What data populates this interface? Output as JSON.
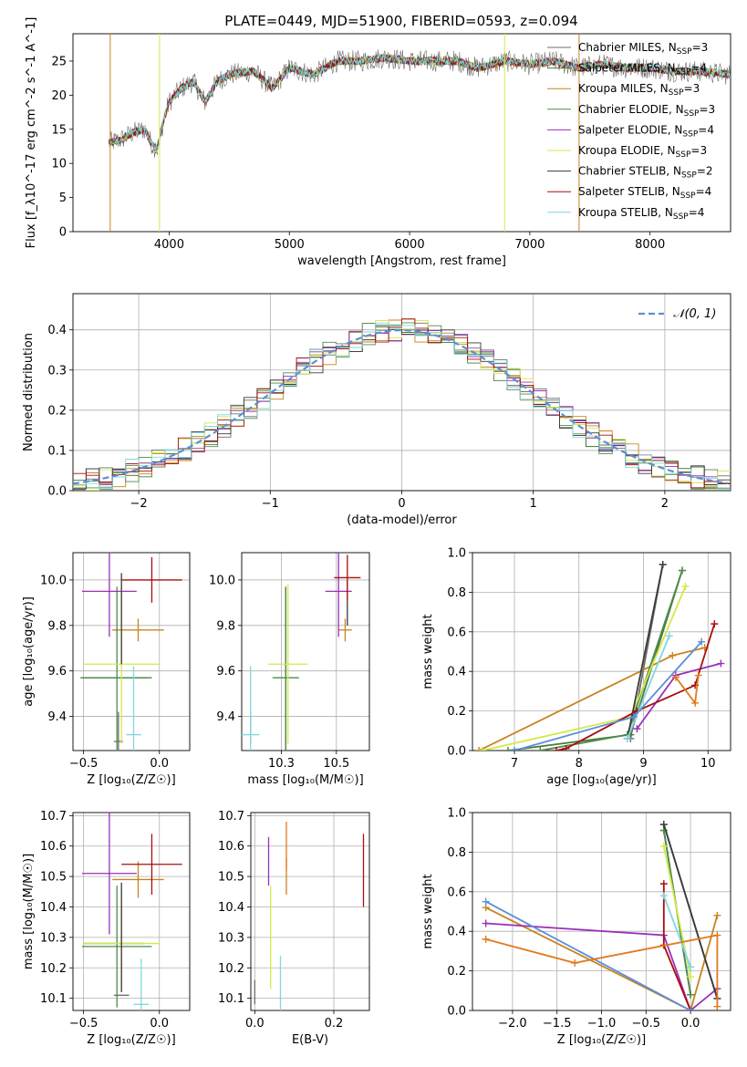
{
  "figure": {
    "title": "PLATE=0449, MJD=51900, FIBERID=0593, z=0.094"
  },
  "models": [
    {
      "name": "Chabrier MILES, N$_{SSP}$=3",
      "label": "Chabrier MILES, N",
      "sub": "SSP",
      "tail": "=3",
      "color": "#6e6e6e"
    },
    {
      "name": "Salpeter MILES, N$_{SSP}$=4",
      "label": "Salpeter MILES, N",
      "sub": "SSP",
      "tail": "=4",
      "color": "#4a7a3a"
    },
    {
      "name": "Kroupa MILES, N$_{SSP}$=3",
      "label": "Kroupa MILES, N",
      "sub": "SSP",
      "tail": "=3",
      "color": "#c8821e"
    },
    {
      "name": "Chabrier ELODIE, N$_{SSP}$=3",
      "label": "Chabrier ELODIE, N",
      "sub": "SSP",
      "tail": "=3",
      "color": "#4e8a4e"
    },
    {
      "name": "Salpeter ELODIE, N$_{SSP}$=4",
      "label": "Salpeter ELODIE, N",
      "sub": "SSP",
      "tail": "=4",
      "color": "#9b30b8"
    },
    {
      "name": "Kroupa ELODIE, N$_{SSP}$=3",
      "label": "Kroupa ELODIE, N",
      "sub": "SSP",
      "tail": "=3",
      "color": "#d4e84a"
    },
    {
      "name": "Chabrier STELIB, N$_{SSP}$=2",
      "label": "Chabrier STELIB, N",
      "sub": "SSP",
      "tail": "=2",
      "color": "#3a3a3a"
    },
    {
      "name": "Salpeter STELIB, N$_{SSP}$=4",
      "label": "Salpeter STELIB, N",
      "sub": "SSP",
      "tail": "=4",
      "color": "#a80e0e"
    },
    {
      "name": "Kroupa STELIB, N$_{SSP}$=4",
      "label": "Kroupa STELIB, N",
      "sub": "SSP",
      "tail": "=4",
      "color": "#7fd8e0"
    }
  ],
  "chart_data": [
    {
      "type": "line",
      "panel": "spectrum",
      "xlabel": "wavelength [Angstrom, rest frame]",
      "ylabel": "Flux [f_λ10^-17 erg cm^-2 s^-1 A^-1]",
      "xlim": [
        3200,
        8670
      ],
      "ylim": [
        0,
        29
      ],
      "xticks": [
        4000,
        5000,
        6000,
        7000,
        8000
      ],
      "yticks": [
        0,
        5,
        10,
        15,
        20,
        25
      ],
      "grid": false,
      "legend": "top-right",
      "continuum": [
        [
          3500,
          13
        ],
        [
          3600,
          13.5
        ],
        [
          3700,
          14.5
        ],
        [
          3800,
          15
        ],
        [
          3850,
          13
        ],
        [
          3900,
          12
        ],
        [
          3950,
          16
        ],
        [
          4000,
          19
        ],
        [
          4100,
          21
        ],
        [
          4200,
          22
        ],
        [
          4300,
          19
        ],
        [
          4400,
          22
        ],
        [
          4500,
          23
        ],
        [
          4700,
          23.5
        ],
        [
          4860,
          21
        ],
        [
          5000,
          24
        ],
        [
          5200,
          23
        ],
        [
          5400,
          25
        ],
        [
          5600,
          25
        ],
        [
          5800,
          25.5
        ],
        [
          6000,
          25
        ],
        [
          6200,
          25
        ],
        [
          6400,
          25
        ],
        [
          6563,
          24
        ],
        [
          6800,
          25
        ],
        [
          7000,
          24.5
        ],
        [
          7200,
          25
        ],
        [
          7400,
          24
        ],
        [
          7600,
          24.5
        ],
        [
          7800,
          24
        ],
        [
          8000,
          24
        ],
        [
          8200,
          23.5
        ],
        [
          8400,
          23.5
        ],
        [
          8670,
          23
        ]
      ],
      "spikes": [
        {
          "x": 3510,
          "model": 2
        },
        {
          "x": 3920,
          "model": 5
        },
        {
          "x": 6790,
          "model": 5
        },
        {
          "x": 7410,
          "model": 2
        }
      ]
    },
    {
      "type": "line",
      "panel": "residuals",
      "xlabel": "(data-model)/error",
      "ylabel": "Normed distribution",
      "xlim": [
        -2.5,
        2.5
      ],
      "ylim": [
        0,
        0.49
      ],
      "xticks": [
        -2,
        -1,
        0,
        1,
        2
      ],
      "yticks": [
        0.0,
        0.1,
        0.2,
        0.3,
        0.4
      ],
      "grid": true,
      "legend": "top-right",
      "legend_entry": "𝒩(0, 1)",
      "gauss_sigma": 1.0
    },
    {
      "type": "scatter",
      "panel": "age-vs-Z",
      "xlabel": "Z [log₁₀(Z/Z☉)]",
      "ylabel": "age  [log₁₀(age/yr)]",
      "xlim": [
        -0.57,
        0.2
      ],
      "ylim": [
        9.25,
        10.12
      ],
      "xticks": [
        -0.5,
        0.0
      ],
      "yticks": [
        9.4,
        9.6,
        9.8,
        10.0
      ],
      "points": [
        {
          "model": 0,
          "x": -0.27,
          "xerr": 0.03,
          "y": 9.29,
          "yerr": 0.13
        },
        {
          "model": 1,
          "x": -0.3,
          "xerr": 0.22,
          "y": 9.57,
          "yerr": 0.0
        },
        {
          "model": 2,
          "x": -0.14,
          "xerr": 0.17,
          "y": 9.78,
          "yerr": 0.05
        },
        {
          "model": 3,
          "x": -0.28,
          "xerr": 0.23,
          "y": 9.57,
          "yerr": 0.4
        },
        {
          "model": 4,
          "x": -0.33,
          "xerr": 0.18,
          "y": 9.95,
          "yerr": 0.2
        },
        {
          "model": 5,
          "x": -0.25,
          "xerr": 0.25,
          "y": 9.63,
          "yerr": 0.35
        },
        {
          "model": 6,
          "x": -0.25,
          "xerr": 0.0,
          "y": 9.83,
          "yerr": 0.2
        },
        {
          "model": 7,
          "x": -0.05,
          "xerr": 0.2,
          "y": 10.0,
          "yerr": 0.1
        },
        {
          "model": 8,
          "x": -0.17,
          "xerr": 0.05,
          "y": 9.32,
          "yerr": 0.3
        }
      ]
    },
    {
      "type": "scatter",
      "panel": "age-vs-mass",
      "xlabel": "mass [log₁₀(M/M☉)]",
      "ylabel": "",
      "xlim": [
        10.07,
        10.65
      ],
      "ylim": [
        9.25,
        10.12
      ],
      "xticks": [
        10.25,
        10.5
      ],
      "yticks": [
        9.4,
        9.6,
        9.8,
        10.0
      ],
      "points": [
        {
          "model": 0,
          "x": 10.11,
          "xerr": 0.0,
          "y": 9.35,
          "yerr": 0.07
        },
        {
          "model": 1,
          "x": 10.27,
          "xerr": 0.0,
          "y": 9.57,
          "yerr": 0.4
        },
        {
          "model": 2,
          "x": 10.54,
          "xerr": 0.03,
          "y": 9.78,
          "yerr": 0.05
        },
        {
          "model": 3,
          "x": 10.27,
          "xerr": 0.06,
          "y": 9.57,
          "yerr": 0.4
        },
        {
          "model": 4,
          "x": 10.51,
          "xerr": 0.06,
          "y": 9.95,
          "yerr": 0.2
        },
        {
          "model": 5,
          "x": 10.28,
          "xerr": 0.09,
          "y": 9.63,
          "yerr": 0.35
        },
        {
          "model": 6,
          "x": 10.55,
          "xerr": 0.0,
          "y": 9.9,
          "yerr": 0.1
        },
        {
          "model": 7,
          "x": 10.55,
          "xerr": 0.06,
          "y": 10.01,
          "yerr": 0.1
        },
        {
          "model": 8,
          "x": 10.11,
          "xerr": 0.04,
          "y": 9.32,
          "yerr": 0.3
        }
      ]
    },
    {
      "type": "line",
      "panel": "mass-weight-vs-age",
      "xlabel": "age  [log₁₀(age/yr)]",
      "ylabel": "mass weight",
      "xlim": [
        6.35,
        10.35
      ],
      "ylim": [
        0,
        1.0
      ],
      "xticks": [
        7,
        8,
        9,
        10
      ],
      "yticks": [
        0.0,
        0.2,
        0.4,
        0.6,
        0.8,
        1.0
      ],
      "series": [
        {
          "model": 0,
          "x": [
            8.8,
            9.3
          ],
          "y": [
            0.06,
            0.94
          ]
        },
        {
          "model": 1,
          "x": [
            6.9,
            8.8,
            9.6
          ],
          "y": [
            0.0,
            0.08,
            0.91
          ]
        },
        {
          "model": 2,
          "x": [
            6.45,
            9.45,
            9.95
          ],
          "y": [
            0.0,
            0.48,
            0.52
          ]
        },
        {
          "model": 3,
          "x": [
            7.4,
            8.75,
            9.6
          ],
          "y": [
            0.0,
            0.08,
            0.91
          ]
        },
        {
          "model": 4,
          "x": [
            8.9,
            9.5,
            10.2
          ],
          "y": [
            0.11,
            0.38,
            0.44
          ]
        },
        {
          "model": 5,
          "x": [
            6.5,
            8.8,
            9.65
          ],
          "y": [
            0.0,
            0.17,
            0.83
          ]
        },
        {
          "model": 6,
          "x": [
            8.75,
            9.3
          ],
          "y": [
            0.06,
            0.94
          ]
        },
        {
          "model": 7,
          "x": [
            7.65,
            7.8,
            8.9,
            9.8,
            10.1
          ],
          "y": [
            0.0,
            0.01,
            0.2,
            0.33,
            0.64
          ]
        },
        {
          "model": 8,
          "x": [
            8.75,
            9.4
          ],
          "y": [
            0.06,
            0.58
          ]
        },
        {
          "model": 9,
          "x": [
            7.0,
            8.85,
            9.9
          ],
          "y": [
            0.0,
            0.17,
            0.55
          ]
        },
        {
          "model": 10,
          "x": [
            9.5,
            9.8,
            9.85
          ],
          "y": [
            0.37,
            0.24,
            0.38
          ]
        }
      ]
    },
    {
      "type": "scatter",
      "panel": "mass-vs-Z",
      "xlabel": "Z [log₁₀(Z/Z☉)]",
      "ylabel": "mass [log₁₀(M/M☉)]",
      "xlim": [
        -0.57,
        0.2
      ],
      "ylim": [
        10.06,
        10.71
      ],
      "xticks": [
        -0.5,
        0.0
      ],
      "yticks": [
        10.1,
        10.2,
        10.3,
        10.4,
        10.5,
        10.6,
        10.7
      ],
      "points": [
        {
          "model": 0,
          "x": -0.25,
          "xerr": 0.05,
          "y": 10.11,
          "yerr": 0.0
        },
        {
          "model": 1,
          "x": -0.3,
          "xerr": 0.2,
          "y": 10.28,
          "yerr": 0.0
        },
        {
          "model": 2,
          "x": -0.14,
          "xerr": 0.17,
          "y": 10.49,
          "yerr": 0.06
        },
        {
          "model": 3,
          "x": -0.28,
          "xerr": 0.23,
          "y": 10.27,
          "yerr": 0.2
        },
        {
          "model": 4,
          "x": -0.33,
          "xerr": 0.18,
          "y": 10.51,
          "yerr": 0.2
        },
        {
          "model": 5,
          "x": -0.25,
          "xerr": 0.25,
          "y": 10.28,
          "yerr": 0.15
        },
        {
          "model": 6,
          "x": -0.25,
          "xerr": 0.0,
          "y": 10.3,
          "yerr": 0.18
        },
        {
          "model": 7,
          "x": -0.05,
          "xerr": 0.2,
          "y": 10.54,
          "yerr": 0.1
        },
        {
          "model": 8,
          "x": -0.12,
          "xerr": 0.05,
          "y": 10.08,
          "yerr": 0.15
        }
      ]
    },
    {
      "type": "scatter",
      "panel": "mass-vs-EBV",
      "xlabel": "E(B-V)",
      "ylabel": "",
      "xlim": [
        -0.01,
        0.29
      ],
      "ylim": [
        10.06,
        10.71
      ],
      "xticks": [
        0.0,
        0.2
      ],
      "yticks": [
        10.1,
        10.2,
        10.3,
        10.4,
        10.5,
        10.6,
        10.7
      ],
      "points": [
        {
          "model": 0,
          "x": 0.0,
          "y": 10.12,
          "yerr": 0.04
        },
        {
          "model": 4,
          "x": 0.035,
          "y": 10.55,
          "yerr": 0.08
        },
        {
          "model": 5,
          "x": 0.04,
          "y": 10.3,
          "yerr": 0.17
        },
        {
          "model": 2,
          "x": 0.08,
          "y": 10.5,
          "yerr": 0.06
        },
        {
          "model": 10,
          "x": 0.08,
          "y": 10.6,
          "yerr": 0.08
        },
        {
          "model": 8,
          "x": 0.065,
          "y": 10.15,
          "yerr": 0.09
        },
        {
          "model": 7,
          "x": 0.275,
          "y": 10.52,
          "yerr": 0.12
        }
      ]
    },
    {
      "type": "line",
      "panel": "mass-weight-vs-Z",
      "xlabel": "Z [log₁₀(Z/Z☉)]",
      "ylabel": "mass weight",
      "xlim": [
        -2.45,
        0.45
      ],
      "ylim": [
        0,
        1.0
      ],
      "xticks": [
        -2.0,
        -1.5,
        -1.0,
        -0.5,
        0.0
      ],
      "yticks": [
        0.0,
        0.2,
        0.4,
        0.6,
        0.8,
        1.0
      ],
      "series": [
        {
          "model": 0,
          "x": [
            -0.3,
            0.3
          ],
          "y": [
            0.94,
            0.06
          ]
        },
        {
          "model": 1,
          "x": [
            -0.3,
            0.0
          ],
          "y": [
            0.91,
            0.08
          ]
        },
        {
          "model": 2,
          "x": [
            -2.3,
            0.0,
            0.3
          ],
          "y": [
            0.52,
            0.0,
            0.48
          ]
        },
        {
          "model": 3,
          "x": [
            -0.3,
            0.0
          ],
          "y": [
            0.91,
            0.08
          ]
        },
        {
          "model": 4,
          "x": [
            -2.3,
            -0.3,
            0.0,
            0.3
          ],
          "y": [
            0.44,
            0.38,
            0.0,
            0.11
          ]
        },
        {
          "model": 5,
          "x": [
            -0.3,
            0.0
          ],
          "y": [
            0.83,
            0.17
          ]
        },
        {
          "model": 6,
          "x": [
            -0.3,
            0.3
          ],
          "y": [
            0.94,
            0.06
          ]
        },
        {
          "model": 7,
          "x": [
            -0.3,
            -0.3,
            0.0
          ],
          "y": [
            0.64,
            0.33,
            0.0
          ]
        },
        {
          "model": 8,
          "x": [
            -0.3,
            0.0
          ],
          "y": [
            0.58,
            0.22
          ]
        },
        {
          "model": 9,
          "x": [
            -2.3,
            0.0
          ],
          "y": [
            0.55,
            0.0
          ]
        },
        {
          "model": 10,
          "x": [
            -2.3,
            -1.3,
            0.3,
            0.3
          ],
          "y": [
            0.36,
            0.24,
            0.38,
            0.02
          ]
        }
      ]
    }
  ],
  "extra_colors": [
    "#5b8fd9",
    "#e07a1e",
    "#e389c0"
  ]
}
